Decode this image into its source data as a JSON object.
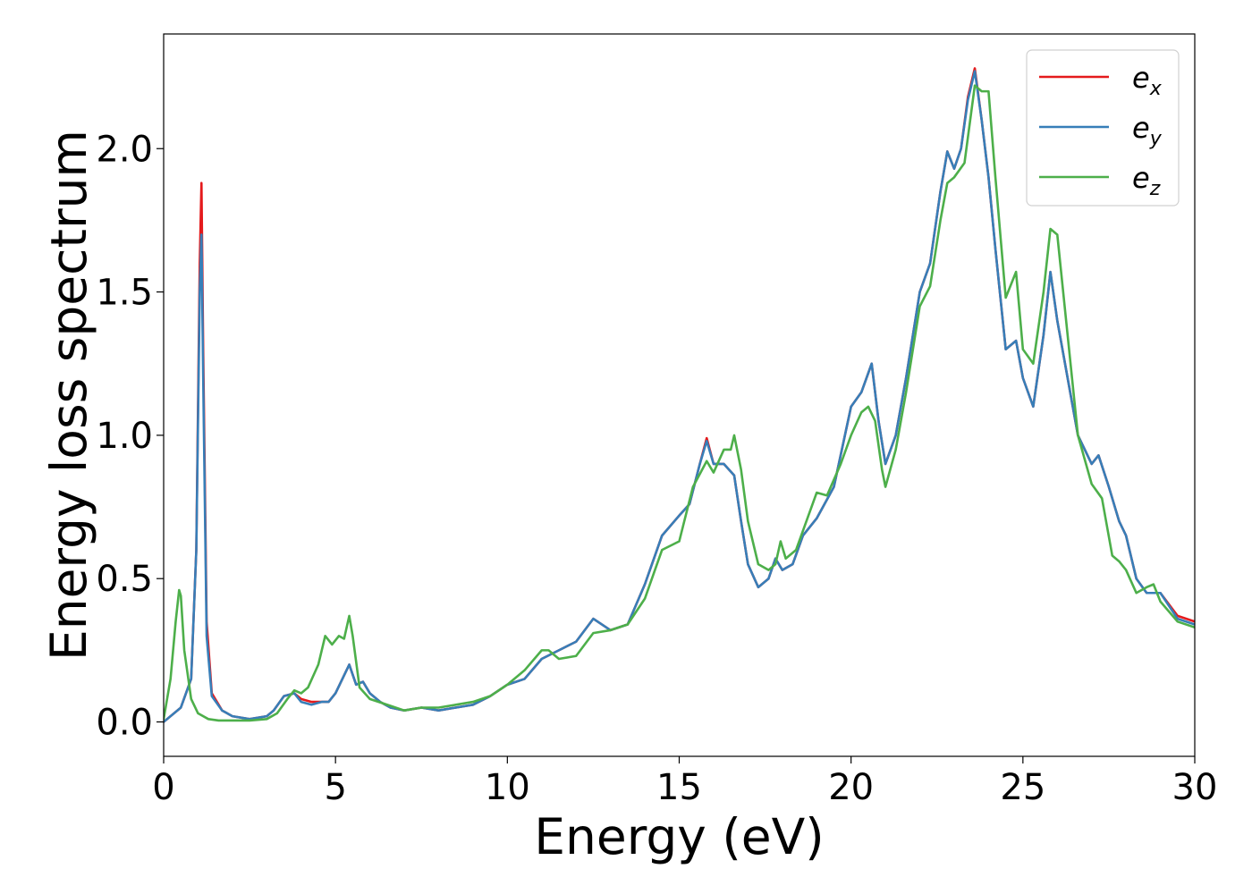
{
  "chart_data": {
    "type": "line",
    "xlabel": "Energy (eV)",
    "ylabel": "Energy loss spectrum",
    "xlim": [
      0,
      30
    ],
    "ylim": [
      -0.12,
      2.4
    ],
    "x_ticks": [
      0,
      5,
      10,
      15,
      20,
      25,
      30
    ],
    "x_tick_labels": [
      "0",
      "5",
      "10",
      "15",
      "20",
      "25",
      "30"
    ],
    "y_ticks": [
      0.0,
      0.5,
      1.0,
      1.5,
      2.0
    ],
    "y_tick_labels": [
      "0.0",
      "0.5",
      "1.0",
      "1.5",
      "2.0"
    ],
    "grid": false,
    "legend_position": "top-right",
    "series": [
      {
        "name": "e_x",
        "legend_base": "e",
        "legend_sub": "x",
        "color": "#e41a1c",
        "x": [
          0,
          0.5,
          0.8,
          0.95,
          1.05,
          1.1,
          1.15,
          1.25,
          1.4,
          1.7,
          2.0,
          2.5,
          3.0,
          3.2,
          3.5,
          3.8,
          4.0,
          4.3,
          4.6,
          4.8,
          5.0,
          5.2,
          5.4,
          5.6,
          5.8,
          6.0,
          6.3,
          6.6,
          7.0,
          7.5,
          8.0,
          8.5,
          9.0,
          9.5,
          10.0,
          10.5,
          11.0,
          11.5,
          12.0,
          12.5,
          13.0,
          13.5,
          14.0,
          14.5,
          15.0,
          15.3,
          15.6,
          15.8,
          16.0,
          16.3,
          16.6,
          16.8,
          17.0,
          17.3,
          17.6,
          17.8,
          18.0,
          18.3,
          18.6,
          19.0,
          19.5,
          20.0,
          20.3,
          20.6,
          20.8,
          21.0,
          21.3,
          21.6,
          22.0,
          22.3,
          22.6,
          22.8,
          23.0,
          23.2,
          23.4,
          23.6,
          23.8,
          24.0,
          24.2,
          24.5,
          24.8,
          25.0,
          25.3,
          25.6,
          25.8,
          26.0,
          26.3,
          26.6,
          27.0,
          27.2,
          27.5,
          27.8,
          28.0,
          28.3,
          28.6,
          29.0,
          29.5,
          30.0
        ],
        "y": [
          0.0,
          0.05,
          0.15,
          0.6,
          1.6,
          1.88,
          1.3,
          0.35,
          0.1,
          0.04,
          0.02,
          0.01,
          0.02,
          0.04,
          0.09,
          0.1,
          0.08,
          0.07,
          0.07,
          0.07,
          0.1,
          0.15,
          0.2,
          0.13,
          0.14,
          0.1,
          0.07,
          0.05,
          0.04,
          0.05,
          0.04,
          0.05,
          0.06,
          0.09,
          0.13,
          0.15,
          0.22,
          0.25,
          0.28,
          0.36,
          0.32,
          0.34,
          0.48,
          0.65,
          0.72,
          0.76,
          0.9,
          0.99,
          0.9,
          0.9,
          0.86,
          0.7,
          0.55,
          0.47,
          0.5,
          0.57,
          0.53,
          0.55,
          0.65,
          0.71,
          0.82,
          1.1,
          1.15,
          1.25,
          1.05,
          0.9,
          1.0,
          1.2,
          1.5,
          1.6,
          1.85,
          1.99,
          1.93,
          2.0,
          2.18,
          2.28,
          2.1,
          1.9,
          1.65,
          1.3,
          1.33,
          1.2,
          1.1,
          1.35,
          1.57,
          1.4,
          1.2,
          1.0,
          0.9,
          0.93,
          0.82,
          0.7,
          0.65,
          0.5,
          0.45,
          0.45,
          0.37,
          0.35
        ]
      },
      {
        "name": "e_y",
        "legend_base": "e",
        "legend_sub": "y",
        "color": "#377eb8",
        "x": [
          0,
          0.5,
          0.8,
          0.95,
          1.05,
          1.1,
          1.15,
          1.25,
          1.4,
          1.7,
          2.0,
          2.5,
          3.0,
          3.2,
          3.5,
          3.8,
          4.0,
          4.3,
          4.6,
          4.8,
          5.0,
          5.2,
          5.4,
          5.6,
          5.8,
          6.0,
          6.3,
          6.6,
          7.0,
          7.5,
          8.0,
          8.5,
          9.0,
          9.5,
          10.0,
          10.5,
          11.0,
          11.5,
          12.0,
          12.5,
          13.0,
          13.5,
          14.0,
          14.5,
          15.0,
          15.3,
          15.6,
          15.8,
          16.0,
          16.3,
          16.6,
          16.8,
          17.0,
          17.3,
          17.6,
          17.8,
          18.0,
          18.3,
          18.6,
          19.0,
          19.5,
          20.0,
          20.3,
          20.6,
          20.8,
          21.0,
          21.3,
          21.6,
          22.0,
          22.3,
          22.6,
          22.8,
          23.0,
          23.2,
          23.4,
          23.6,
          23.8,
          24.0,
          24.2,
          24.5,
          24.8,
          25.0,
          25.3,
          25.6,
          25.8,
          26.0,
          26.3,
          26.6,
          27.0,
          27.2,
          27.5,
          27.8,
          28.0,
          28.3,
          28.6,
          29.0,
          29.5,
          30.0
        ],
        "y": [
          0.0,
          0.05,
          0.15,
          0.6,
          1.5,
          1.7,
          1.2,
          0.3,
          0.09,
          0.04,
          0.02,
          0.01,
          0.02,
          0.04,
          0.09,
          0.1,
          0.07,
          0.06,
          0.07,
          0.07,
          0.1,
          0.15,
          0.2,
          0.13,
          0.14,
          0.1,
          0.07,
          0.05,
          0.04,
          0.05,
          0.04,
          0.05,
          0.06,
          0.09,
          0.13,
          0.15,
          0.22,
          0.25,
          0.28,
          0.36,
          0.32,
          0.34,
          0.48,
          0.65,
          0.72,
          0.76,
          0.9,
          0.98,
          0.9,
          0.9,
          0.86,
          0.7,
          0.55,
          0.47,
          0.5,
          0.57,
          0.53,
          0.55,
          0.65,
          0.71,
          0.82,
          1.1,
          1.15,
          1.25,
          1.05,
          0.9,
          1.0,
          1.2,
          1.5,
          1.6,
          1.85,
          1.99,
          1.93,
          2.0,
          2.17,
          2.27,
          2.1,
          1.9,
          1.65,
          1.3,
          1.33,
          1.2,
          1.1,
          1.35,
          1.57,
          1.4,
          1.2,
          1.0,
          0.9,
          0.93,
          0.82,
          0.7,
          0.65,
          0.5,
          0.45,
          0.45,
          0.36,
          0.34
        ]
      },
      {
        "name": "e_z",
        "legend_base": "e",
        "legend_sub": "z",
        "color": "#4daf4a",
        "x": [
          0,
          0.2,
          0.35,
          0.45,
          0.5,
          0.6,
          0.8,
          1.0,
          1.3,
          1.6,
          2.0,
          2.5,
          3.0,
          3.3,
          3.6,
          3.8,
          4.0,
          4.2,
          4.5,
          4.7,
          4.9,
          5.1,
          5.25,
          5.4,
          5.5,
          5.7,
          6.0,
          6.5,
          7.0,
          7.5,
          8.0,
          8.5,
          9.0,
          9.5,
          10.0,
          10.5,
          11.0,
          11.2,
          11.5,
          12.0,
          12.5,
          13.0,
          13.5,
          14.0,
          14.5,
          15.0,
          15.4,
          15.8,
          16.0,
          16.3,
          16.5,
          16.6,
          16.8,
          17.0,
          17.3,
          17.6,
          17.8,
          17.95,
          18.1,
          18.4,
          18.7,
          19.0,
          19.3,
          19.7,
          20.0,
          20.3,
          20.5,
          20.7,
          20.9,
          21.0,
          21.3,
          21.6,
          22.0,
          22.3,
          22.6,
          22.8,
          23.0,
          23.3,
          23.6,
          23.8,
          24.0,
          24.2,
          24.5,
          24.8,
          25.0,
          25.3,
          25.6,
          25.8,
          26.0,
          26.3,
          26.6,
          27.0,
          27.3,
          27.6,
          27.8,
          28.0,
          28.3,
          28.6,
          28.8,
          29.0,
          29.5,
          30.0
        ],
        "y": [
          0.01,
          0.15,
          0.35,
          0.46,
          0.44,
          0.25,
          0.08,
          0.03,
          0.01,
          0.005,
          0.005,
          0.005,
          0.01,
          0.03,
          0.08,
          0.11,
          0.1,
          0.12,
          0.2,
          0.3,
          0.27,
          0.3,
          0.29,
          0.37,
          0.3,
          0.12,
          0.08,
          0.06,
          0.04,
          0.05,
          0.05,
          0.06,
          0.07,
          0.09,
          0.13,
          0.18,
          0.25,
          0.25,
          0.22,
          0.23,
          0.31,
          0.32,
          0.34,
          0.43,
          0.6,
          0.63,
          0.82,
          0.91,
          0.87,
          0.95,
          0.95,
          1.0,
          0.88,
          0.7,
          0.55,
          0.53,
          0.55,
          0.63,
          0.57,
          0.6,
          0.7,
          0.8,
          0.79,
          0.9,
          1.0,
          1.08,
          1.1,
          1.05,
          0.88,
          0.82,
          0.95,
          1.15,
          1.45,
          1.52,
          1.75,
          1.88,
          1.9,
          1.95,
          2.22,
          2.2,
          2.2,
          1.9,
          1.48,
          1.57,
          1.3,
          1.25,
          1.5,
          1.72,
          1.7,
          1.35,
          1.0,
          0.83,
          0.78,
          0.58,
          0.56,
          0.53,
          0.45,
          0.47,
          0.48,
          0.42,
          0.35,
          0.33
        ]
      }
    ]
  }
}
